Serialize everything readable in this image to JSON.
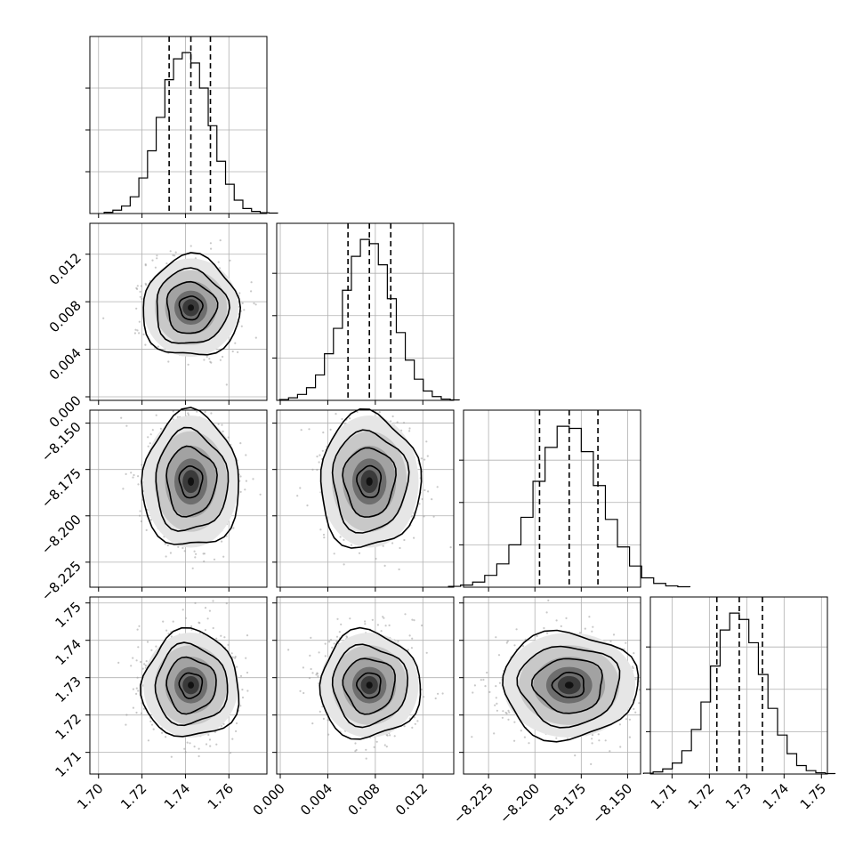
{
  "chart_data": {
    "type": "corner",
    "description_free": true,
    "grid": true,
    "parameters": [
      {
        "center": 1.7425,
        "q16": 1.7325,
        "q84": 1.7515,
        "sigma": 0.0095,
        "range": [
          1.696,
          1.7775
        ],
        "ticks": [
          "1.70",
          "1.72",
          "1.74",
          "1.76"
        ],
        "tick_values": [
          1.7,
          1.72,
          1.74,
          1.76
        ]
      },
      {
        "center": 0.0075,
        "q16": 0.0057,
        "q84": 0.0093,
        "sigma": 0.0018,
        "range": [
          -0.0003,
          0.0146
        ],
        "ticks": [
          "0.000",
          "0.004",
          "0.008",
          "0.012"
        ],
        "tick_values": [
          0.0,
          0.004,
          0.008,
          0.012
        ]
      },
      {
        "center": -8.1815,
        "q16": -8.1975,
        "q84": -8.166,
        "sigma": 0.0155,
        "range": [
          -8.2385,
          -8.143
        ],
        "ticks": [
          "−8.225",
          "−8.200",
          "−8.175",
          "−8.150"
        ],
        "tick_values": [
          -8.225,
          -8.2,
          -8.175,
          -8.15
        ]
      },
      {
        "center": 1.728,
        "q16": 1.722,
        "q84": 1.7342,
        "sigma": 0.0061,
        "range": [
          1.7042,
          1.7516
        ],
        "ticks": [
          "1.71",
          "1.72",
          "1.73",
          "1.74",
          "1.75"
        ],
        "tick_values": [
          1.71,
          1.72,
          1.73,
          1.74,
          1.75
        ]
      }
    ],
    "histograms": [
      {
        "counts": [
          3,
          8,
          18,
          40,
          85,
          150,
          230,
          320,
          370,
          385,
          360,
          300,
          210,
          125,
          70,
          32,
          12,
          5,
          2,
          1
        ]
      },
      {
        "counts": [
          2,
          6,
          14,
          30,
          60,
          110,
          170,
          260,
          340,
          380,
          370,
          320,
          240,
          160,
          95,
          50,
          22,
          9,
          3,
          1
        ]
      },
      {
        "counts": [
          2,
          5,
          12,
          28,
          55,
          100,
          165,
          250,
          330,
          380,
          375,
          320,
          240,
          160,
          95,
          50,
          22,
          9,
          3,
          1
        ]
      },
      {
        "counts": [
          2,
          5,
          12,
          26,
          55,
          105,
          170,
          255,
          340,
          380,
          365,
          310,
          235,
          155,
          92,
          48,
          20,
          8,
          3,
          1
        ]
      }
    ]
  }
}
